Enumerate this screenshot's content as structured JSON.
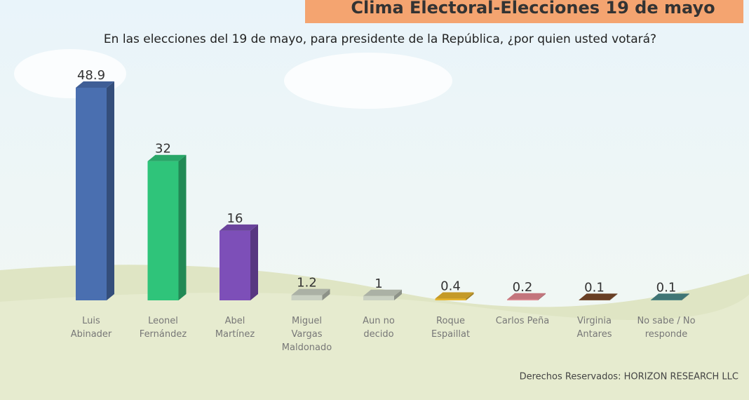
{
  "chart_data": {
    "type": "bar3d",
    "title": "Clima Electoral-Elecciones 19 de mayo",
    "subtitle": "En las elecciones del 19 de mayo, para presidente de la República, ¿por quien usted votará?",
    "categories": [
      "Luis\nAbinader",
      "Leonel\nFernández",
      "Abel\nMartínez",
      "Miguel\nVargas\nMaldonado",
      "Aun no\ndecido",
      "Roque\nEspaillat",
      "Carlos Peña",
      "Virginia\nAntares",
      "No sabe / No\nresponde"
    ],
    "values": [
      48.9,
      32,
      16,
      1.2,
      1,
      0.4,
      0.2,
      0.1,
      0.1
    ],
    "colors": [
      "#4a6fb0",
      "#2fc47a",
      "#7d4fb8",
      "#c9d0c2",
      "#c9d0c2",
      "#e6b52e",
      "#e58a92",
      "#7a4a2a",
      "#4a8a8a"
    ],
    "source": "Derechos Reservados: HORIZON RESEARCH LLC"
  }
}
